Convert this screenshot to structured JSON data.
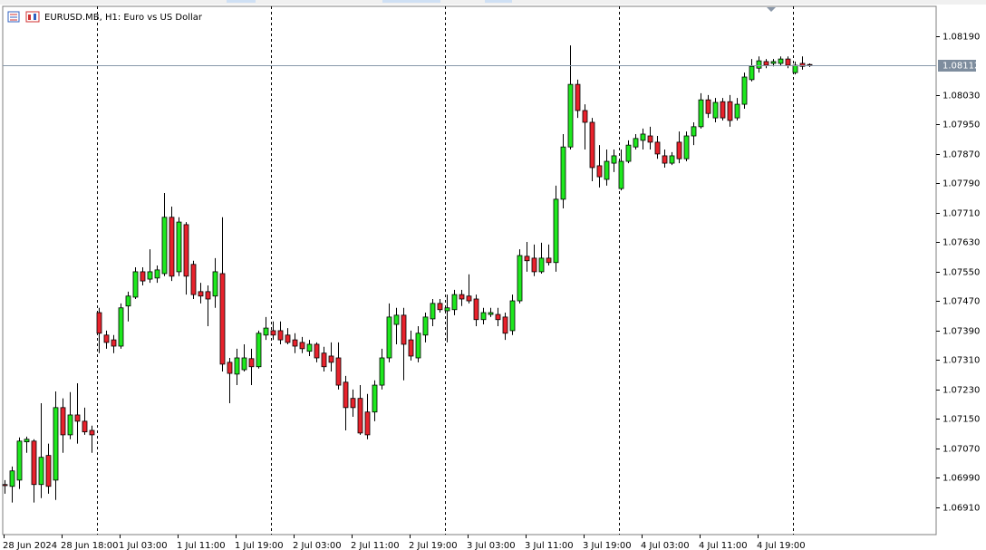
{
  "chart_data": {
    "type": "candlestick",
    "title": "EURUSD.MB, H1:  Euro vs US Dollar",
    "up_color": "#1ee81e",
    "down_color": "#e8222c",
    "wick_color": "#000000",
    "categories": [
      "28 Jun 2024",
      null,
      null,
      null,
      null,
      null,
      null,
      null,
      "28 Jun 18:00",
      null,
      null,
      null,
      null,
      null,
      null,
      null,
      "1 Jul 03:00",
      null,
      null,
      null,
      null,
      null,
      null,
      null,
      "1 Jul 11:00",
      null,
      null,
      null,
      null,
      null,
      null,
      null,
      "1 Jul 19:00",
      null,
      null,
      null,
      null,
      null,
      null,
      null,
      "2 Jul 03:00",
      null,
      null,
      null,
      null,
      null,
      null,
      null,
      "2 Jul 11:00",
      null,
      null,
      null,
      null,
      null,
      null,
      null,
      "2 Jul 19:00",
      null,
      null,
      null,
      null,
      null,
      null,
      null,
      "3 Jul 03:00",
      null,
      null,
      null,
      null,
      null,
      null,
      null,
      "3 Jul 11:00",
      null,
      null,
      null,
      null,
      null,
      null,
      null,
      "3 Jul 19:00",
      null,
      null,
      null,
      null,
      null,
      null,
      null,
      "4 Jul 03:00",
      null,
      null,
      null,
      null,
      null,
      null,
      null,
      "4 Jul 11:00",
      null,
      null,
      null,
      null,
      null,
      null,
      null,
      "4 Jul 19:00",
      null,
      null,
      null,
      null,
      null,
      null,
      null
    ],
    "open": [
      1.06972,
      1.06967,
      1.06984,
      1.07088,
      1.0709,
      1.06972,
      1.07051,
      1.06984,
      1.07181,
      1.07107,
      1.07161,
      1.07144,
      1.07119,
      1.07439,
      1.07378,
      1.07365,
      1.07348,
      1.07457,
      1.07481,
      1.0755,
      1.0753,
      1.07533,
      1.07545,
      1.07698,
      1.0755,
      1.07678,
      1.0757,
      1.07496,
      1.07496,
      1.07484,
      1.07545,
      1.07304,
      1.07272,
      1.07284,
      1.07314,
      1.07292,
      1.07378,
      1.0739,
      1.0739,
      1.07378,
      1.07365,
      1.07358,
      1.07334,
      1.07353,
      1.07329,
      1.07321,
      1.07316,
      1.0725,
      1.07206,
      1.07206,
      1.07169,
      1.07169,
      1.07242,
      1.07316,
      1.07407,
      1.07432,
      1.07365,
      1.07316,
      1.07378,
      1.07422,
      1.07464,
      1.07444,
      1.07447,
      1.07488,
      1.07484,
      1.07476,
      1.0742,
      1.07434,
      1.07434,
      1.07427,
      1.0739,
      1.07471,
      1.07592,
      1.07587,
      1.0755,
      1.07587,
      1.07575,
      1.07747,
      1.07889,
      1.08059,
      1.07988,
      1.07956,
      1.07838,
      1.07801,
      1.07845,
      1.07776,
      1.0785,
      1.07889,
      1.07907,
      1.07919,
      1.07902,
      1.07865,
      1.07845,
      1.07902,
      1.07857,
      1.07919,
      1.07944,
      1.08017,
      1.07968,
      1.08012,
      1.08012,
      1.07968,
      1.08005,
      1.08072,
      1.08103,
      1.08121,
      1.08116,
      1.08116,
      1.08128,
      1.08091,
      1.08116,
      1.08113
    ],
    "high": [
      1.06984,
      1.07021,
      1.071,
      1.07102,
      1.07095,
      1.07193,
      1.07083,
      1.07225,
      1.07206,
      1.07223,
      1.07247,
      1.07181,
      1.07132,
      1.07452,
      1.0739,
      1.07378,
      1.07464,
      1.07496,
      1.07562,
      1.07562,
      1.07611,
      1.07567,
      1.07764,
      1.07727,
      1.07698,
      1.07685,
      1.0758,
      1.0752,
      1.07513,
      1.07587,
      1.07698,
      1.07316,
      1.07341,
      1.07353,
      1.07341,
      1.0739,
      1.07427,
      1.07415,
      1.07415,
      1.07397,
      1.07383,
      1.07373,
      1.07365,
      1.07358,
      1.07346,
      1.07358,
      1.07358,
      1.07267,
      1.0723,
      1.07242,
      1.07218,
      1.07255,
      1.07341,
      1.07464,
      1.07452,
      1.07452,
      1.0739,
      1.07402,
      1.07439,
      1.07476,
      1.07476,
      1.07488,
      1.07501,
      1.07501,
      1.07543,
      1.07488,
      1.07452,
      1.07452,
      1.07452,
      1.07439,
      1.07488,
      1.07611,
      1.07631,
      1.07624,
      1.07629,
      1.07624,
      1.07784,
      1.07924,
      1.08165,
      1.08072,
      1.08005,
      1.07968,
      1.07894,
      1.07882,
      1.07882,
      1.07882,
      1.07907,
      1.07924,
      1.07939,
      1.07944,
      1.07919,
      1.07882,
      1.07875,
      1.07931,
      1.07931,
      1.07956,
      1.08035,
      1.0803,
      1.08022,
      1.08022,
      1.0803,
      1.08022,
      1.08091,
      1.08128,
      1.08135,
      1.08128,
      1.08128,
      1.08135,
      1.08135,
      1.08121,
      1.08135,
      1.08116
    ],
    "low": [
      1.06947,
      1.06923,
      1.0696,
      1.07058,
      1.06923,
      1.06935,
      1.06947,
      1.0693,
      1.07058,
      1.07095,
      1.07083,
      1.07107,
      1.07058,
      1.07329,
      1.07341,
      1.07329,
      1.07341,
      1.07415,
      1.07476,
      1.07513,
      1.0752,
      1.0752,
      1.07538,
      1.07525,
      1.07538,
      1.07488,
      1.07476,
      1.07464,
      1.07402,
      1.07452,
      1.07279,
      1.07193,
      1.07242,
      1.07279,
      1.07242,
      1.07287,
      1.07365,
      1.07365,
      1.07353,
      1.07353,
      1.07329,
      1.07329,
      1.07321,
      1.07304,
      1.07279,
      1.07279,
      1.0723,
      1.07119,
      1.07156,
      1.07107,
      1.07095,
      1.07144,
      1.0723,
      1.07304,
      1.07353,
      1.07255,
      1.07309,
      1.07304,
      1.07358,
      1.07402,
      1.07439,
      1.07358,
      1.07432,
      1.07457,
      1.07464,
      1.07402,
      1.07407,
      1.07427,
      1.07402,
      1.07365,
      1.07378,
      1.07464,
      1.0755,
      1.07538,
      1.07545,
      1.07567,
      1.0755,
      1.07722,
      1.07882,
      1.07968,
      1.07882,
      1.07796,
      1.07779,
      1.07784,
      1.07821,
      1.07771,
      1.07845,
      1.07882,
      1.07882,
      1.07882,
      1.07857,
      1.07833,
      1.0784,
      1.07845,
      1.0785,
      1.07894,
      1.07939,
      1.07968,
      1.07956,
      1.07961,
      1.07944,
      1.07961,
      1.07993,
      1.08067,
      1.08091,
      1.08103,
      1.08108,
      1.08111,
      1.08103,
      1.08086,
      1.08099,
      1.08106
    ],
    "close": [
      1.06969,
      1.07009,
      1.0709,
      1.07095,
      1.06972,
      1.07046,
      1.06967,
      1.07181,
      1.07107,
      1.07161,
      1.07144,
      1.07115,
      1.07107,
      1.07383,
      1.07358,
      1.07348,
      1.07452,
      1.07484,
      1.0755,
      1.07525,
      1.0755,
      1.07555,
      1.07698,
      1.07538,
      1.07685,
      1.07538,
      1.07488,
      1.07484,
      1.07476,
      1.0755,
      1.07299,
      1.07274,
      1.07316,
      1.07316,
      1.07292,
      1.07383,
      1.07397,
      1.07378,
      1.07365,
      1.07358,
      1.07348,
      1.07341,
      1.07353,
      1.07316,
      1.07292,
      1.07304,
      1.07242,
      1.07181,
      1.07181,
      1.07112,
      1.07107,
      1.07242,
      1.07316,
      1.07427,
      1.07432,
      1.07353,
      1.07321,
      1.07383,
      1.07427,
      1.07464,
      1.07447,
      1.07452,
      1.07488,
      1.07476,
      1.07471,
      1.0742,
      1.07439,
      1.07439,
      1.0742,
      1.07383,
      1.07471,
      1.07594,
      1.0758,
      1.0755,
      1.07587,
      1.07575,
      1.07747,
      1.07889,
      1.08059,
      1.07988,
      1.07956,
      1.07833,
      1.07808,
      1.0785,
      1.07865,
      1.0785,
      1.07894,
      1.07912,
      1.07924,
      1.07902,
      1.0787,
      1.07845,
      1.07865,
      1.07857,
      1.07919,
      1.07944,
      1.08017,
      1.0798,
      1.0801,
      1.07968,
      1.07961,
      1.08005,
      1.08079,
      1.08108,
      1.08123,
      1.08111,
      1.08121,
      1.08128,
      1.08111,
      1.08111,
      1.08108,
      1.08112
    ],
    "current_price": 1.08112,
    "ylim": [
      1.06836,
      1.08271
    ],
    "yticks": [
      {
        "value": 1.0691,
        "label": "1.06910"
      },
      {
        "value": 1.0699,
        "label": "1.06990"
      },
      {
        "value": 1.0707,
        "label": "1.07070"
      },
      {
        "value": 1.0715,
        "label": "1.07150"
      },
      {
        "value": 1.0723,
        "label": "1.07230"
      },
      {
        "value": 1.0731,
        "label": "1.07310"
      },
      {
        "value": 1.0739,
        "label": "1.07390"
      },
      {
        "value": 1.0747,
        "label": "1.07470"
      },
      {
        "value": 1.0755,
        "label": "1.07550"
      },
      {
        "value": 1.0763,
        "label": "1.07630"
      },
      {
        "value": 1.0771,
        "label": "1.07710"
      },
      {
        "value": 1.0779,
        "label": "1.07790"
      },
      {
        "value": 1.0787,
        "label": "1.07870"
      },
      {
        "value": 1.0795,
        "label": "1.07950"
      },
      {
        "value": 1.0803,
        "label": "1.08030"
      },
      {
        "value": 1.0819,
        "label": "1.08190"
      }
    ]
  }
}
